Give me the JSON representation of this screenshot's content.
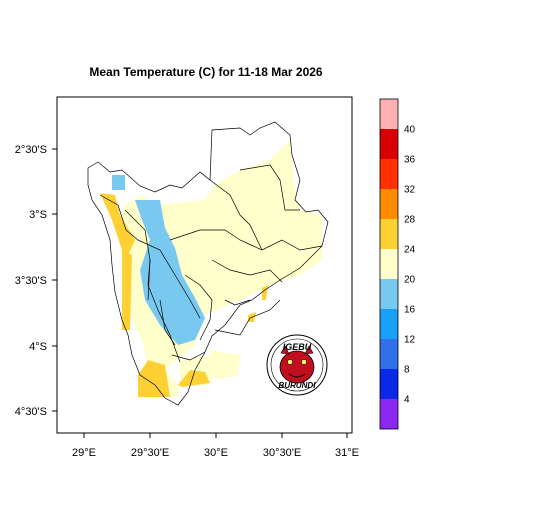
{
  "map": {
    "title": "Mean Temperature (C) for 11-18 Mar 2026",
    "lon_ticks": [
      "29°E",
      "29°30'E",
      "30°E",
      "30°30'E",
      "31°E"
    ],
    "lat_ticks": [
      "2°30'S",
      "3°S",
      "3°30'S",
      "4°S",
      "4°30'S"
    ],
    "logo": {
      "top_text": "IGEBU",
      "bottom_text": "BURUNDI"
    }
  },
  "colorbar": {
    "labels": [
      "40",
      "36",
      "32",
      "28",
      "24",
      "20",
      "16",
      "12",
      "8",
      "4"
    ],
    "colors": [
      "#ffb0b0",
      "#d80000",
      "#ff3000",
      "#ff8c00",
      "#ffd033",
      "#ffffcc",
      "#78c8f0",
      "#1aa0f8",
      "#3070e8",
      "#0a28e8",
      "#8c28f0"
    ]
  },
  "fill_colors": {
    "cool": "#78c8f0",
    "mild": "#ffffcc",
    "warm": "#ffd033"
  }
}
